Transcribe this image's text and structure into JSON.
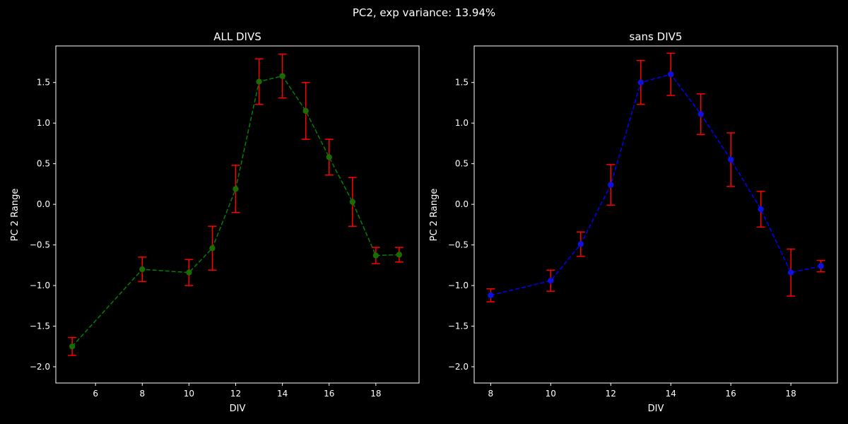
{
  "figure": {
    "suptitle": "PC2, exp variance: 13.94%",
    "background": "#000000",
    "foreground": "#ffffff"
  },
  "chart_data": [
    {
      "type": "line",
      "title": "ALL DIVS",
      "xlabel": "DIV",
      "ylabel": "PC 2 Range",
      "xlim": [
        4.3,
        19.85
      ],
      "ylim": [
        -2.2,
        1.95
      ],
      "xticks": [
        6,
        8,
        10,
        12,
        14,
        16,
        18
      ],
      "yticks": [
        -2.0,
        -1.5,
        -1.0,
        -0.5,
        0.0,
        0.5,
        1.0,
        1.5
      ],
      "ytick_labels": [
        "−2.0",
        "−1.5",
        "−1.0",
        "−0.5",
        "0.0",
        "0.5",
        "1.0",
        "1.5"
      ],
      "line_style": "dashed",
      "line_color": "#008000",
      "marker_color": "#1a6b00",
      "errorbar_color": "#ff0000",
      "grid": false,
      "series": [
        {
          "x": [
            5,
            8,
            10,
            11,
            12,
            13,
            14,
            15,
            16,
            17,
            18,
            19
          ],
          "y": [
            -1.75,
            -0.8,
            -0.84,
            -0.54,
            0.19,
            1.51,
            1.58,
            1.15,
            0.58,
            0.03,
            -0.63,
            -0.62
          ],
          "err": [
            0.11,
            0.15,
            0.16,
            0.27,
            0.29,
            0.28,
            0.27,
            0.35,
            0.22,
            0.3,
            0.1,
            0.09
          ]
        }
      ]
    },
    {
      "type": "line",
      "title": "sans DIV5",
      "xlabel": "DIV",
      "ylabel": "PC 2 Range",
      "xlim": [
        7.45,
        19.55
      ],
      "ylim": [
        -2.2,
        1.95
      ],
      "xticks": [
        8,
        10,
        12,
        14,
        16,
        18
      ],
      "yticks": [
        -2.0,
        -1.5,
        -1.0,
        -0.5,
        0.0,
        0.5,
        1.0,
        1.5
      ],
      "ytick_labels": [
        "−2.0",
        "−1.5",
        "−1.0",
        "−0.5",
        "0.0",
        "0.5",
        "1.0",
        "1.5"
      ],
      "line_style": "dashed",
      "line_color": "#0000ff",
      "marker_color": "#1010e0",
      "errorbar_color": "#ff0000",
      "grid": false,
      "series": [
        {
          "x": [
            8,
            10,
            11,
            12,
            13,
            14,
            15,
            16,
            17,
            18,
            19
          ],
          "y": [
            -1.12,
            -0.94,
            -0.49,
            0.24,
            1.5,
            1.6,
            1.11,
            0.55,
            -0.06,
            -0.84,
            -0.76
          ],
          "err": [
            0.08,
            0.13,
            0.15,
            0.25,
            0.27,
            0.26,
            0.25,
            0.33,
            0.22,
            0.29,
            0.07
          ]
        }
      ]
    }
  ]
}
